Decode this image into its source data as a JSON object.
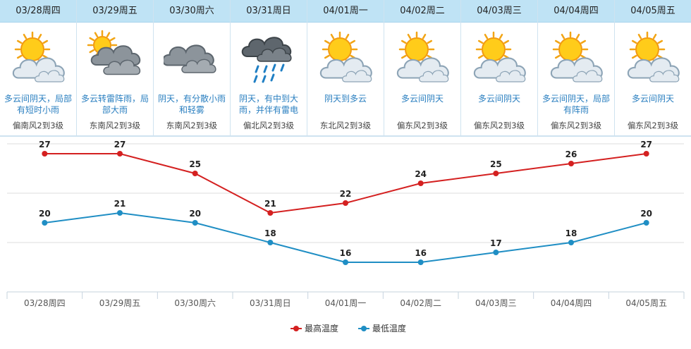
{
  "forecast": [
    {
      "date": "03/28周四",
      "icon": "partly-cloudy-icon",
      "desc": "多云间阴天，局部有短时小雨",
      "wind": "偏南风2到3级"
    },
    {
      "date": "03/29周五",
      "icon": "thunder-shower-cloud-icon",
      "desc": "多云转雷阵雨，局部大雨",
      "wind": "东南风2到3级"
    },
    {
      "date": "03/30周六",
      "icon": "overcast-icon",
      "desc": "阴天，有分散小雨和轻雾",
      "wind": "东南风2到3级"
    },
    {
      "date": "03/31周日",
      "icon": "rain-icon",
      "desc": "阴天，有中到大雨，并伴有雷电",
      "wind": "偏北风2到3级"
    },
    {
      "date": "04/01周一",
      "icon": "partly-cloudy-icon",
      "desc": "阴天到多云",
      "wind": "东北风2到3级"
    },
    {
      "date": "04/02周二",
      "icon": "partly-cloudy-icon",
      "desc": "多云间阴天",
      "wind": "偏东风2到3级"
    },
    {
      "date": "04/03周三",
      "icon": "partly-cloudy-icon",
      "desc": "多云间阴天",
      "wind": "偏东风2到3级"
    },
    {
      "date": "04/04周四",
      "icon": "partly-cloudy-icon",
      "desc": "多云间阴天，局部有阵雨",
      "wind": "偏东风2到3级"
    },
    {
      "date": "04/05周五",
      "icon": "partly-cloudy-icon",
      "desc": "多云间阴天",
      "wind": "偏东风2到3级"
    }
  ],
  "chart_data": {
    "type": "line",
    "categories": [
      "03/28周四",
      "03/29周五",
      "03/30周六",
      "03/31周日",
      "04/01周一",
      "04/02周二",
      "04/03周三",
      "04/04周四",
      "04/05周五"
    ],
    "series": [
      {
        "name": "最高温度",
        "color": "#d42020",
        "values": [
          27,
          27,
          25,
          21,
          22,
          24,
          25,
          26,
          27
        ]
      },
      {
        "name": "最低温度",
        "color": "#1f8ec4",
        "values": [
          20,
          21,
          20,
          18,
          16,
          16,
          17,
          18,
          20
        ]
      }
    ],
    "ylim": [
      13,
      28
    ],
    "grid": true,
    "legend": "bottom-center",
    "data_labels": true
  },
  "colors": {
    "header_bg": "#bfe3f5",
    "desc_text": "#2a7fc0",
    "grid_line": "#dddddd"
  }
}
